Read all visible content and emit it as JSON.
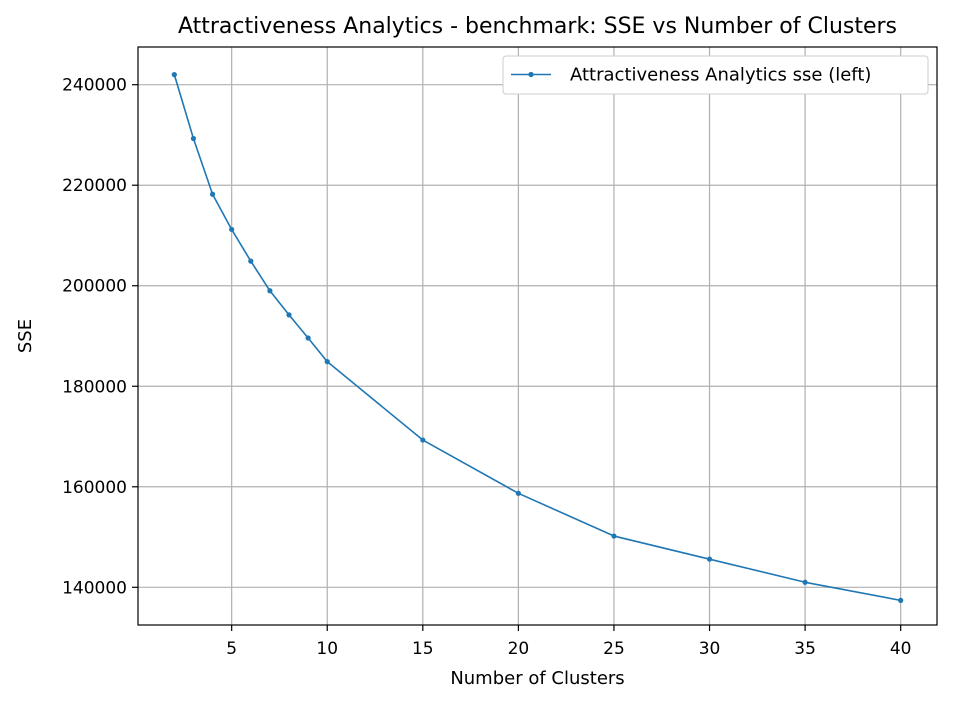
{
  "chart_data": {
    "type": "line",
    "title": "Attractiveness Analytics - benchmark: SSE vs Number of Clusters",
    "xlabel": "Number of Clusters",
    "ylabel": "SSE",
    "xlim": [
      0.1,
      41.9
    ],
    "ylim": [
      132500,
      247500
    ],
    "xticks": [
      5,
      10,
      15,
      20,
      25,
      30,
      35,
      40
    ],
    "yticks": [
      140000,
      160000,
      180000,
      200000,
      220000,
      240000
    ],
    "grid": true,
    "legend_position": "top-right",
    "series": [
      {
        "name": "Attractiveness Analytics sse (left)",
        "color": "#1f77b4",
        "marker": "circle",
        "x": [
          2,
          3,
          4,
          5,
          6,
          7,
          8,
          9,
          10,
          15,
          20,
          25,
          30,
          35,
          40
        ],
        "y": [
          242000,
          229300,
          218200,
          211200,
          204900,
          199000,
          194200,
          189600,
          184900,
          169300,
          158700,
          150200,
          145600,
          141000,
          137400
        ]
      }
    ]
  }
}
